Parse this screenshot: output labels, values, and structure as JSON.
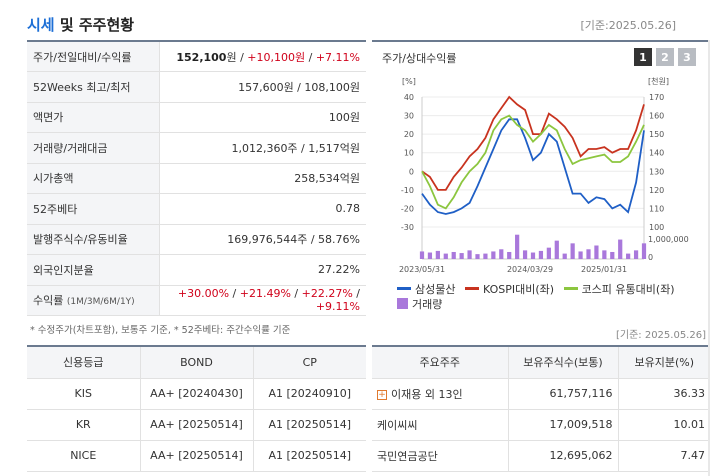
{
  "header": {
    "title_accent": "시세",
    "title_rest": " 및 주주현황",
    "date": "[기준:2025.05.26]"
  },
  "quote": {
    "rows": [
      {
        "label": "주가/전일대비/수익률",
        "price": "152,100",
        "unit": "원",
        "sep1": " / ",
        "change": "+10,100원",
        "sep2": " / ",
        "pct": "+7.11%"
      },
      {
        "label": "52Weeks 최고/최저",
        "value": "157,600원 / 108,100원"
      },
      {
        "label": "액면가",
        "value": "100원"
      },
      {
        "label": "거래량/거래대금",
        "value": "1,012,360주 / 1,517억원"
      },
      {
        "label": "시가총액",
        "value": "258,534억원"
      },
      {
        "label": "52주베타",
        "value": "0.78"
      },
      {
        "label": "발행주식수/유동비율",
        "value": "169,976,544주 / 58.76%"
      },
      {
        "label": "외국인지분율",
        "value": "27.22%"
      },
      {
        "label_main": "수익률",
        "label_small": "(1M/3M/6M/1Y)",
        "r1": "+30.00%",
        "r2": "+21.49%",
        "r3": "+22.27%",
        "r4": "+9.11%",
        "sep": " / "
      }
    ],
    "footnote": "* 수정주가(차트포함), 보통주 기준, * 52주베타: 주간수익률 기준"
  },
  "chart_panel": {
    "title": "주가/상대수익률",
    "buttons": [
      "1",
      "2",
      "3"
    ],
    "left_unit": "[%]",
    "right_unit": "[천원]",
    "volume_tick": "1,000,000",
    "volume_zero": "0",
    "legend": {
      "samsung": "삼성물산",
      "kospi": "KOSPI대비(좌)",
      "kospi_flow": "코스피 유통대비(좌)",
      "volume": "거래량"
    }
  },
  "chart_data": {
    "type": "line",
    "x_labels": [
      "2023/05/31",
      "2024/03/29",
      "2025/01/31"
    ],
    "y_left_ticks": [
      40,
      30,
      20,
      10,
      0,
      -10,
      -20,
      -30
    ],
    "y_right_ticks": [
      170,
      160,
      150,
      140,
      130,
      120,
      110,
      100
    ],
    "ylim_left": [
      -30,
      40
    ],
    "ylim_right": [
      100,
      170
    ],
    "series": [
      {
        "name": "삼성물산",
        "axis": "right",
        "color": "#1f5fc6",
        "values": [
          118,
          112,
          108,
          107,
          108,
          110,
          113,
          122,
          132,
          142,
          152,
          158,
          158,
          148,
          136,
          140,
          150,
          146,
          132,
          118,
          118,
          113,
          116,
          115,
          110,
          112,
          108,
          124,
          152
        ]
      },
      {
        "name": "KOSPI대비(좌)",
        "axis": "left",
        "color": "#c8331f",
        "values": [
          0,
          -3,
          -10,
          -10,
          -3,
          2,
          8,
          12,
          18,
          28,
          34,
          40,
          36,
          33,
          20,
          20,
          31,
          28,
          24,
          18,
          8,
          12,
          12,
          13,
          10,
          12,
          12,
          22,
          36
        ]
      },
      {
        "name": "코스피 유통대비(좌)",
        "axis": "left",
        "color": "#8cc63f",
        "values": [
          0,
          -8,
          -18,
          -20,
          -14,
          -6,
          0,
          4,
          10,
          22,
          28,
          30,
          25,
          22,
          16,
          20,
          25,
          22,
          12,
          4,
          6,
          7,
          8,
          9,
          5,
          5,
          8,
          16,
          25
        ]
      }
    ],
    "volume": [
      1.4,
      1.2,
      1.5,
      1.0,
      1.3,
      1.1,
      1.6,
      0.9,
      1.0,
      1.4,
      1.8,
      1.3,
      4.5,
      1.6,
      1.2,
      1.5,
      2.1,
      3.4,
      1.0,
      2.9,
      1.4,
      1.8,
      2.5,
      1.6,
      1.3,
      3.6,
      1.0,
      1.6,
      2.9
    ],
    "volume_color": "#a978db"
  },
  "date2": "[기준: 2025.05.26]",
  "credit": {
    "headers": [
      "신용등급",
      "BOND",
      "CP"
    ],
    "rows": [
      [
        "KIS",
        "AA+  [20240430]",
        "A1  [20240910]"
      ],
      [
        "KR",
        "AA+  [20250514]",
        "A1  [20250514]"
      ],
      [
        "NICE",
        "AA+  [20250514]",
        "A1  [20250514]"
      ]
    ]
  },
  "holders": {
    "headers": [
      "주요주주",
      "보유주식수(보통)",
      "보유지분(%)"
    ],
    "rows": [
      [
        "이재용 외 13인",
        "61,757,116",
        "36.33"
      ],
      [
        "케이씨씨",
        "17,009,518",
        "10.01"
      ],
      [
        "국민연금공단",
        "12,695,062",
        "7.47"
      ]
    ]
  }
}
